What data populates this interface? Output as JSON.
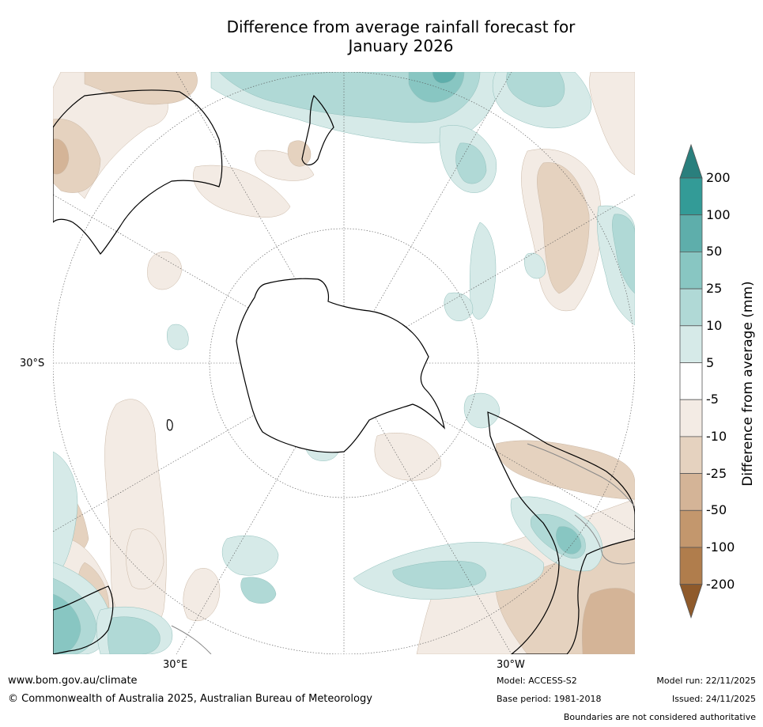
{
  "title": {
    "line1": "Difference from average rainfall forecast for",
    "line2": "January 2026"
  },
  "map": {
    "lat_label": "30°S",
    "lon_label_east": "30°E",
    "lon_label_west": "30°W",
    "colors": {
      "coast": "#000000",
      "graticule": "#555555",
      "border": "#888888",
      "wet1": "#d6eae8",
      "wet2": "#b0d9d6",
      "wet3": "#88c6c2",
      "wet4": "#5eaeab",
      "dry1": "#f3ebe4",
      "dry2": "#e5d2bf",
      "dry3": "#d4b497"
    }
  },
  "colorbar": {
    "title": "Difference from average (mm)",
    "labels": [
      "200",
      "100",
      "50",
      "25",
      "10",
      "5",
      "-5",
      "-10",
      "-25",
      "-50",
      "-100",
      "-200"
    ],
    "colors": [
      "#2a7f7d",
      "#339b97",
      "#5eaeab",
      "#88c6c2",
      "#b0d9d6",
      "#d6eae8",
      "#ffffff",
      "#f3ebe4",
      "#e5d2bf",
      "#d4b497",
      "#c3976d",
      "#b07d4c",
      "#8f5a2b"
    ]
  },
  "footer": {
    "url": "www.bom.gov.au/climate",
    "copyright": "© Commonwealth of Australia 2025, Australian Bureau of Meteorology",
    "model": "Model: ACCESS-S2",
    "base_period": "Base period: 1981-2018",
    "model_run": "Model run: 22/11/2025",
    "issued": "Issued: 24/11/2025",
    "disclaimer": "Boundaries are not considered authoritative"
  }
}
